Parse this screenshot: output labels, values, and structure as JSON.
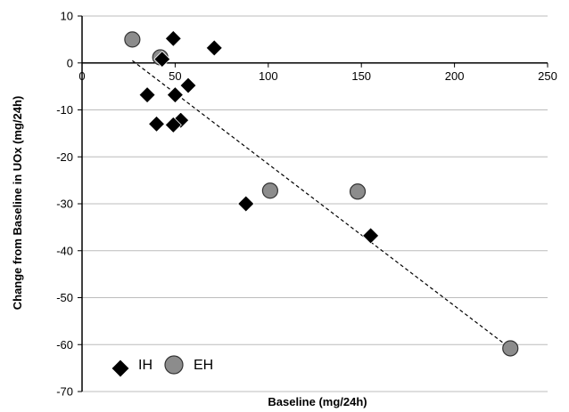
{
  "chart_data": {
    "type": "scatter",
    "xlabel": "Baseline (mg/24h)",
    "ylabel": "Change from Baseline in UOx (mg/24h)",
    "xlim": [
      0,
      250
    ],
    "ylim": [
      -70,
      10
    ],
    "x_ticks": [
      0,
      50,
      100,
      150,
      200,
      250
    ],
    "y_ticks": [
      -70,
      -60,
      -50,
      -40,
      -30,
      -20,
      -10,
      0,
      10
    ],
    "x_tick_labels": [
      "0",
      "50",
      "100",
      "150",
      "200",
      "250"
    ],
    "y_tick_labels": [
      "-70",
      "-60",
      "-50",
      "-40",
      "-30",
      "-20",
      "-10",
      "0",
      "10"
    ],
    "grid": "horizontal",
    "legend_position": "bottom-left",
    "series": [
      {
        "name": "IH",
        "marker": "diamond",
        "color": "#000000",
        "points": [
          {
            "x": 49,
            "y": 5.2
          },
          {
            "x": 71,
            "y": 3.2
          },
          {
            "x": 43,
            "y": 0.8
          },
          {
            "x": 35,
            "y": -6.8
          },
          {
            "x": 50,
            "y": -6.8
          },
          {
            "x": 57,
            "y": -4.8
          },
          {
            "x": 40,
            "y": -13
          },
          {
            "x": 53,
            "y": -12.2
          },
          {
            "x": 49,
            "y": -13.2
          },
          {
            "x": 88,
            "y": -30
          },
          {
            "x": 155,
            "y": -36.8
          }
        ]
      },
      {
        "name": "EH",
        "marker": "circle",
        "color": "#8c8c8c",
        "points": [
          {
            "x": 27,
            "y": 5
          },
          {
            "x": 42,
            "y": 1.2
          },
          {
            "x": 101,
            "y": -27.2
          },
          {
            "x": 148,
            "y": -27.4
          },
          {
            "x": 230,
            "y": -60.8
          }
        ]
      }
    ],
    "trendline": {
      "style": "dashed",
      "color": "#000000",
      "points": [
        {
          "x": 27,
          "y": 0.5
        },
        {
          "x": 230,
          "y": -60.8
        }
      ]
    }
  }
}
